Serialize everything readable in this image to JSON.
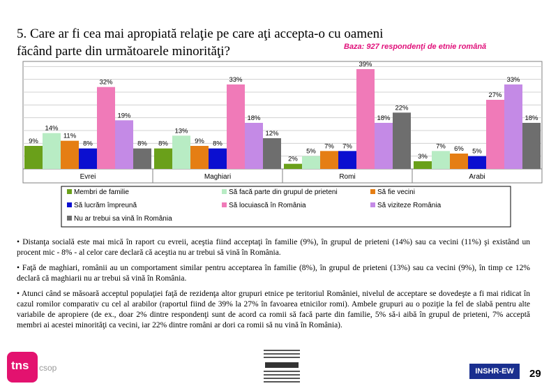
{
  "page": {
    "title_line1": "5. Care ar fi cea mai apropiată relaţie pe care aţi accepta-o cu oameni",
    "title_line2": "făcând parte din următoarele minorităţi?",
    "base_note": "Baza: 927 respondenţi de etnie română",
    "bullets": [
      "• Distanţa socială este mai mică în raport cu evreii, aceştia fiind acceptaţi în familie (9%), în grupul de prieteni (14%) sau ca vecini (11%) şi existând un procent mic - 8% - al celor care declară că aceştia nu ar trebui să vină în România.",
      "• Faţă de maghiari, românii au un comportament similar pentru acceptarea în familie (8%), în grupul de prieteni (13%) sau ca vecini (9%), în timp ce 12% declară că maghiarii nu ar trebui să vină în România.",
      "• Atunci când se măsoară acceptul populaţiei faţă de rezidenţa altor grupuri etnice pe teritoriul României, nivelul de acceptare se dovedeşte a fi mai ridicat în cazul romilor comparativ cu cel al arabilor (raportul fiind de 39% la 27% în favoarea etnicilor romi). Ambele grupuri au o poziţie la fel de slabă pentru alte variabile de apropiere (de ex., doar 2% dintre respondenţi sunt de acord ca romii să facă parte din familie, 5% să-i aibă în grupul de prieteni, 7% acceptă membri ai acestei minorităţi ca vecini, iar 22% dintre români ar dori ca romii să nu vină în România)."
    ],
    "logo_tns": "tns",
    "logo_csop": "csop",
    "logo_taskforce": "TASK FORCE FOR INTERNATIONAL COOPERATION ON HOLOCAUST EDUCATION, REMEMBRANCE AND RESEARCH",
    "insh_label": "INSHR-EW",
    "page_number": "29"
  },
  "chart_data": {
    "type": "bar",
    "categories": [
      "Evrei",
      "Maghiari",
      "Romi",
      "Arabi"
    ],
    "ylim": [
      0,
      42
    ],
    "grid": true,
    "legend_placement": "bottom",
    "series": [
      {
        "name": "Membri de familie",
        "values": [
          9,
          8,
          2,
          3
        ],
        "labels": [
          "9%",
          "8%",
          "2%",
          "3%"
        ],
        "color": "#6aa01a"
      },
      {
        "name": "Să facă parte din grupul de prieteni",
        "values": [
          14,
          13,
          5,
          7
        ],
        "labels": [
          "14%",
          "13%",
          "5%",
          "7%"
        ],
        "color": "#b8ecc4"
      },
      {
        "name": "Să fie vecini",
        "values": [
          11,
          9,
          7,
          6
        ],
        "labels": [
          "11%",
          "9%",
          "7%",
          "6%"
        ],
        "color": "#e57e14"
      },
      {
        "name": "Să lucrăm împreună",
        "values": [
          8,
          8,
          7,
          5
        ],
        "labels": [
          "8%",
          "8%",
          "7%",
          "5%"
        ],
        "color": "#0b0fd0"
      },
      {
        "name": "Să locuiască în România",
        "values": [
          32,
          33,
          39,
          27
        ],
        "labels": [
          "32%",
          "33%",
          "39%",
          "27%"
        ],
        "color": "#f07ab8"
      },
      {
        "name": "Să viziteze România",
        "values": [
          19,
          18,
          18,
          33
        ],
        "labels": [
          "19%",
          "18%",
          "18%",
          "33%"
        ],
        "color": "#c48ae6"
      },
      {
        "name": "Nu ar trebui sa vină în România",
        "values": [
          8,
          12,
          22,
          18
        ],
        "labels": [
          "8%",
          "12%",
          "22%",
          "18%"
        ],
        "color": "#6e6e6e"
      }
    ]
  }
}
